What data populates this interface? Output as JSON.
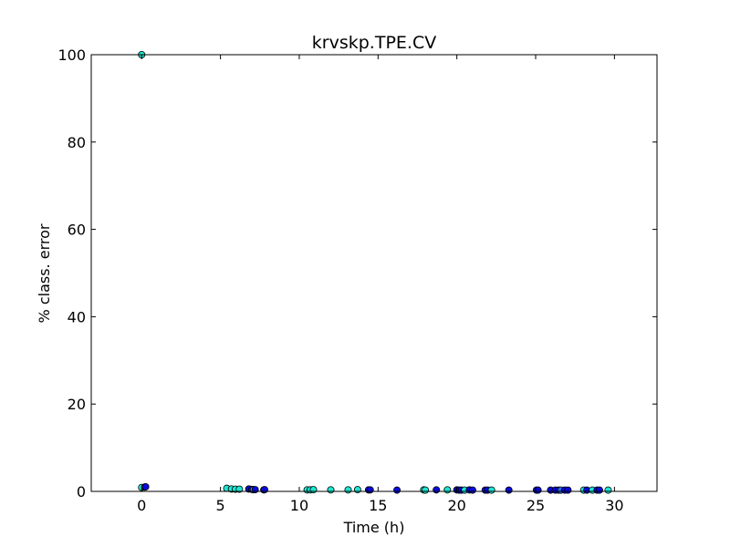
{
  "chart_data": {
    "type": "scatter",
    "title": "krvskp.TPE.CV",
    "xlabel": "Time (h)",
    "ylabel": "% class. error",
    "xlim": [
      -3.2,
      32.7
    ],
    "ylim": [
      0,
      100
    ],
    "x_ticks": [
      0,
      5,
      10,
      15,
      20,
      25,
      30
    ],
    "y_ticks": [
      0,
      20,
      40,
      60,
      80,
      100
    ],
    "grid": false,
    "colors": {
      "dark_blue": "#0a0adc",
      "cyan": "#1ce6d2",
      "mid_blue": "#2a6ae6",
      "outline": "#000000"
    },
    "points": [
      {
        "x": 0.0,
        "y": 100.0,
        "c": "cyan"
      },
      {
        "x": 0.0,
        "y": 0.9,
        "c": "cyan"
      },
      {
        "x": 0.2,
        "y": 1.0,
        "c": "dark_blue"
      },
      {
        "x": 0.25,
        "y": 1.05,
        "c": "dark_blue"
      },
      {
        "x": 5.4,
        "y": 0.7,
        "c": "cyan"
      },
      {
        "x": 5.7,
        "y": 0.55,
        "c": "cyan"
      },
      {
        "x": 5.95,
        "y": 0.5,
        "c": "cyan"
      },
      {
        "x": 6.2,
        "y": 0.5,
        "c": "cyan"
      },
      {
        "x": 6.8,
        "y": 0.55,
        "c": "dark_blue"
      },
      {
        "x": 7.0,
        "y": 0.45,
        "c": "dark_blue"
      },
      {
        "x": 7.1,
        "y": 0.4,
        "c": "cyan"
      },
      {
        "x": 7.2,
        "y": 0.4,
        "c": "dark_blue"
      },
      {
        "x": 7.75,
        "y": 0.35,
        "c": "cyan"
      },
      {
        "x": 7.8,
        "y": 0.4,
        "c": "dark_blue"
      },
      {
        "x": 10.5,
        "y": 0.35,
        "c": "cyan"
      },
      {
        "x": 10.7,
        "y": 0.35,
        "c": "cyan"
      },
      {
        "x": 10.9,
        "y": 0.4,
        "c": "cyan"
      },
      {
        "x": 12.0,
        "y": 0.35,
        "c": "cyan"
      },
      {
        "x": 13.1,
        "y": 0.35,
        "c": "cyan"
      },
      {
        "x": 13.7,
        "y": 0.4,
        "c": "cyan"
      },
      {
        "x": 14.4,
        "y": 0.35,
        "c": "dark_blue"
      },
      {
        "x": 14.5,
        "y": 0.35,
        "c": "dark_blue"
      },
      {
        "x": 16.2,
        "y": 0.3,
        "c": "dark_blue"
      },
      {
        "x": 17.9,
        "y": 0.35,
        "c": "cyan"
      },
      {
        "x": 18.0,
        "y": 0.3,
        "c": "cyan"
      },
      {
        "x": 18.7,
        "y": 0.35,
        "c": "dark_blue"
      },
      {
        "x": 19.4,
        "y": 0.35,
        "c": "cyan"
      },
      {
        "x": 20.0,
        "y": 0.35,
        "c": "dark_blue"
      },
      {
        "x": 20.15,
        "y": 0.3,
        "c": "dark_blue"
      },
      {
        "x": 20.3,
        "y": 0.3,
        "c": "dark_blue"
      },
      {
        "x": 20.5,
        "y": 0.3,
        "c": "cyan"
      },
      {
        "x": 20.8,
        "y": 0.35,
        "c": "dark_blue"
      },
      {
        "x": 21.0,
        "y": 0.3,
        "c": "dark_blue"
      },
      {
        "x": 21.8,
        "y": 0.3,
        "c": "dark_blue"
      },
      {
        "x": 21.95,
        "y": 0.3,
        "c": "dark_blue"
      },
      {
        "x": 22.2,
        "y": 0.3,
        "c": "cyan"
      },
      {
        "x": 23.3,
        "y": 0.3,
        "c": "dark_blue"
      },
      {
        "x": 25.05,
        "y": 0.3,
        "c": "dark_blue"
      },
      {
        "x": 25.15,
        "y": 0.3,
        "c": "dark_blue"
      },
      {
        "x": 25.95,
        "y": 0.3,
        "c": "dark_blue"
      },
      {
        "x": 26.25,
        "y": 0.3,
        "c": "dark_blue"
      },
      {
        "x": 26.45,
        "y": 0.3,
        "c": "dark_blue"
      },
      {
        "x": 26.6,
        "y": 0.3,
        "c": "mid_blue"
      },
      {
        "x": 26.85,
        "y": 0.3,
        "c": "dark_blue"
      },
      {
        "x": 27.05,
        "y": 0.3,
        "c": "dark_blue"
      },
      {
        "x": 28.05,
        "y": 0.3,
        "c": "cyan"
      },
      {
        "x": 28.25,
        "y": 0.3,
        "c": "dark_blue"
      },
      {
        "x": 28.6,
        "y": 0.3,
        "c": "cyan"
      },
      {
        "x": 28.9,
        "y": 0.3,
        "c": "dark_blue"
      },
      {
        "x": 29.05,
        "y": 0.3,
        "c": "dark_blue"
      },
      {
        "x": 29.6,
        "y": 0.3,
        "c": "cyan"
      }
    ]
  }
}
